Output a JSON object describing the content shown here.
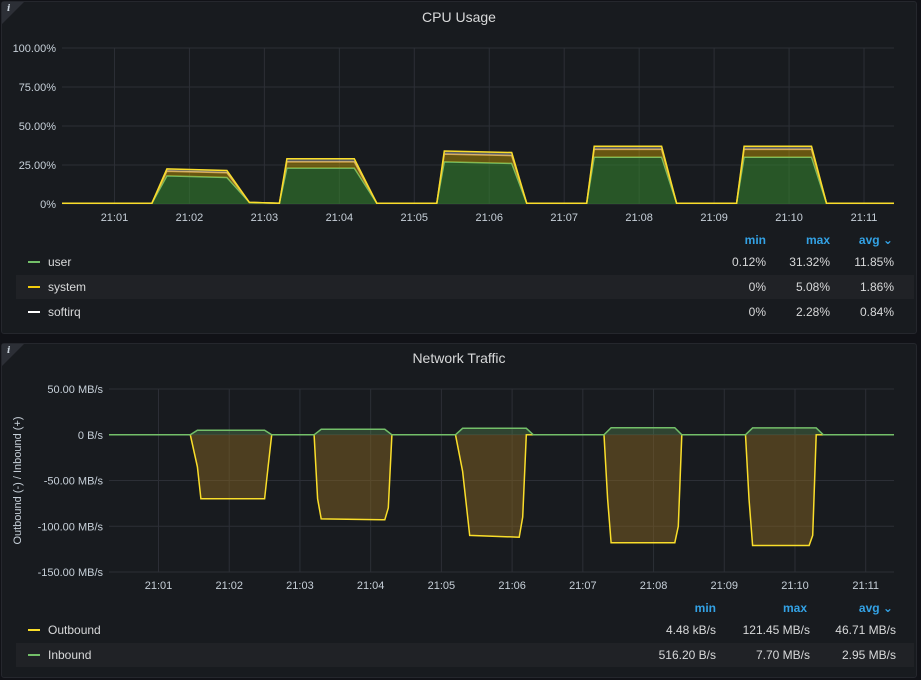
{
  "panels": [
    {
      "title": "CPU Usage",
      "info_icon": "i",
      "legend": {
        "headers": {
          "min": "min",
          "max": "max",
          "avg": "avg ⌄"
        },
        "rows": [
          {
            "name": "user",
            "color": "#73bf69",
            "min": "0.12%",
            "max": "31.32%",
            "avg": "11.85%"
          },
          {
            "name": "system",
            "color": "#f2cc0c",
            "min": "0%",
            "max": "5.08%",
            "avg": "1.86%"
          },
          {
            "name": "softirq",
            "color": "#ffffff",
            "min": "0%",
            "max": "2.28%",
            "avg": "0.84%"
          }
        ]
      }
    },
    {
      "title": "Network Traffic",
      "info_icon": "i",
      "legend": {
        "headers": {
          "min": "min",
          "max": "max",
          "avg": "avg ⌄"
        },
        "rows": [
          {
            "name": "Outbound",
            "color": "#fade2a",
            "min": "4.48 kB/s",
            "max": "121.45 MB/s",
            "avg": "46.71 MB/s"
          },
          {
            "name": "Inbound",
            "color": "#73bf69",
            "min": "516.20 B/s",
            "max": "7.70 MB/s",
            "avg": "2.95 MB/s"
          }
        ]
      }
    }
  ],
  "chart_data": [
    {
      "type": "area",
      "title": "CPU Usage",
      "stacked": true,
      "y_ticks": [
        "0%",
        "25.00%",
        "50.00%",
        "75.00%",
        "100.00%"
      ],
      "ylim": [
        0,
        100
      ],
      "x_ticks": [
        "21:01",
        "21:02",
        "21:03",
        "21:04",
        "21:05",
        "21:06",
        "21:07",
        "21:08",
        "21:09",
        "21:10",
        "21:11"
      ],
      "x_range": [
        "20:60.3",
        "21:11.4"
      ],
      "grid": true,
      "series": [
        {
          "name": "user",
          "color": "#73bf69",
          "x": [
            60.3,
            61.5,
            61.7,
            62.5,
            62.8,
            63.2,
            63.3,
            64.2,
            64.5,
            65.3,
            65.4,
            66.3,
            66.5,
            67.3,
            67.4,
            68.3,
            68.5,
            69.3,
            69.4,
            70.3,
            70.5,
            71.4
          ],
          "values": [
            0.5,
            0.5,
            18,
            17,
            1,
            0.5,
            23,
            23,
            0.5,
            0.5,
            27,
            26,
            0.5,
            0.5,
            30,
            30,
            0.5,
            0.5,
            30,
            30,
            0.5,
            0.5
          ]
        },
        {
          "name": "system",
          "color": "#f2cc0c",
          "x": [
            60.3,
            61.5,
            61.7,
            62.5,
            62.8,
            63.2,
            63.3,
            64.2,
            64.5,
            65.3,
            65.4,
            66.3,
            66.5,
            67.3,
            67.4,
            68.3,
            68.5,
            69.3,
            69.4,
            70.3,
            70.5,
            71.4
          ],
          "values": [
            0,
            0,
            3,
            3,
            0,
            0,
            4,
            4,
            0,
            0,
            5,
            5,
            0,
            0,
            5,
            5,
            0,
            0,
            5,
            5,
            0,
            0
          ]
        },
        {
          "name": "softirq",
          "color": "#ffffff",
          "x": [
            60.3,
            61.5,
            61.7,
            62.5,
            62.8,
            63.2,
            63.3,
            64.2,
            64.5,
            65.3,
            65.4,
            66.3,
            66.5,
            67.3,
            67.4,
            68.3,
            68.5,
            69.3,
            69.4,
            70.3,
            70.5,
            71.4
          ],
          "values": [
            0,
            0,
            1.5,
            1.5,
            0,
            0,
            2,
            2,
            0,
            0,
            2,
            2,
            0,
            0,
            2,
            2,
            0,
            0,
            2,
            2,
            0,
            0
          ]
        }
      ]
    },
    {
      "type": "area",
      "title": "Network Traffic",
      "ylabel": "Outbound (-) / Inbound (+)",
      "y_ticks": [
        "-150.00 MB/s",
        "-100.00 MB/s",
        "-50.00 MB/s",
        "0 B/s",
        "50.00 MB/s"
      ],
      "ylim": [
        -150,
        50
      ],
      "x_ticks": [
        "21:01",
        "21:02",
        "21:03",
        "21:04",
        "21:05",
        "21:06",
        "21:07",
        "21:08",
        "21:09",
        "21:10",
        "21:11"
      ],
      "grid": true,
      "series": [
        {
          "name": "Outbound",
          "color": "#fade2a",
          "x": [
            60.3,
            61.45,
            61.55,
            61.6,
            62.0,
            62.5,
            62.55,
            62.6,
            63.2,
            63.25,
            63.3,
            64.2,
            64.25,
            64.3,
            65.2,
            65.3,
            65.4,
            66.1,
            66.15,
            66.2,
            67.3,
            67.35,
            67.4,
            68.3,
            68.35,
            68.4,
            69.3,
            69.35,
            69.4,
            70.2,
            70.25,
            70.3,
            71.4
          ],
          "values": [
            0,
            0,
            -35,
            -70,
            -70,
            -70,
            -35,
            0,
            0,
            -70,
            -92,
            -93,
            -80,
            0,
            0,
            -40,
            -110,
            -112,
            -90,
            0,
            0,
            -70,
            -118,
            -118,
            -100,
            0,
            0,
            -70,
            -121,
            -121,
            -110,
            0,
            0
          ]
        },
        {
          "name": "Inbound",
          "color": "#73bf69",
          "x": [
            60.3,
            61.45,
            61.55,
            62.5,
            62.6,
            63.2,
            63.3,
            64.2,
            64.3,
            65.2,
            65.3,
            66.2,
            66.3,
            67.3,
            67.4,
            68.3,
            68.4,
            69.3,
            69.4,
            70.3,
            70.4,
            71.4
          ],
          "values": [
            0,
            0,
            5,
            5,
            0,
            0,
            6,
            6,
            0,
            0,
            7,
            7,
            0,
            0,
            7.7,
            7.7,
            0,
            0,
            7.5,
            7.5,
            0,
            0
          ]
        }
      ]
    }
  ]
}
